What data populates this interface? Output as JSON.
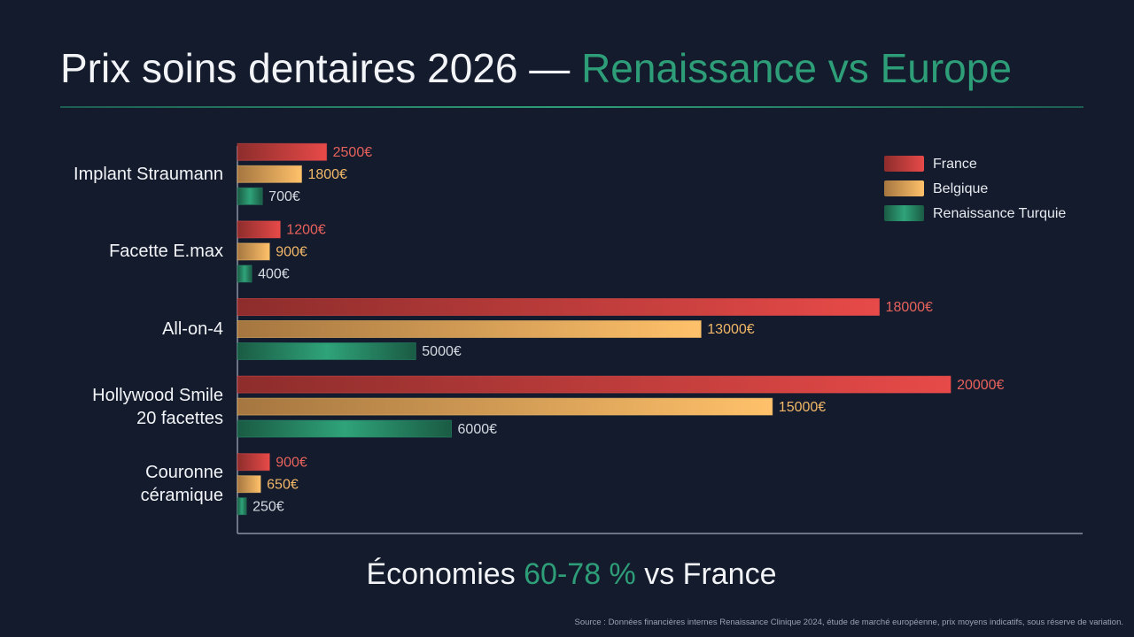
{
  "chart_data": {
    "type": "bar",
    "orientation": "horizontal",
    "title_parts": [
      "Prix soins dentaires 2026 — ",
      "Renaissance vs Europe"
    ],
    "categories": [
      "Implant Straumann",
      "Facette E.max",
      "All-on-4",
      "Hollywood Smile\n20 facettes",
      "Couronne\ncéramique"
    ],
    "series": [
      {
        "name": "France",
        "color": "#c9403f",
        "values": [
          2500,
          1200,
          18000,
          20000,
          900
        ],
        "value_labels": [
          "2500€",
          "1200€",
          "18000€",
          "20000€",
          "900€"
        ]
      },
      {
        "name": "Belgique",
        "color": "#eba85c",
        "values": [
          1800,
          900,
          13000,
          15000,
          650
        ],
        "value_labels": [
          "1800€",
          "900€",
          "13000€",
          "15000€",
          "650€"
        ]
      },
      {
        "name": "Renaissance Turquie",
        "color": "#23795a",
        "values": [
          700,
          400,
          5000,
          6000,
          250
        ],
        "value_labels": [
          "700€",
          "400€",
          "5000€",
          "6000€",
          "250€"
        ]
      }
    ],
    "xlim": [
      0,
      23700
    ],
    "legend": "top-right",
    "footer_parts": [
      "Économies ",
      "60-78 %",
      " vs France"
    ],
    "source": "Source : Données financières internes Renaissance Clinique 2024, étude de marché européenne, prix moyens indicatifs, sous réserve de variation."
  }
}
